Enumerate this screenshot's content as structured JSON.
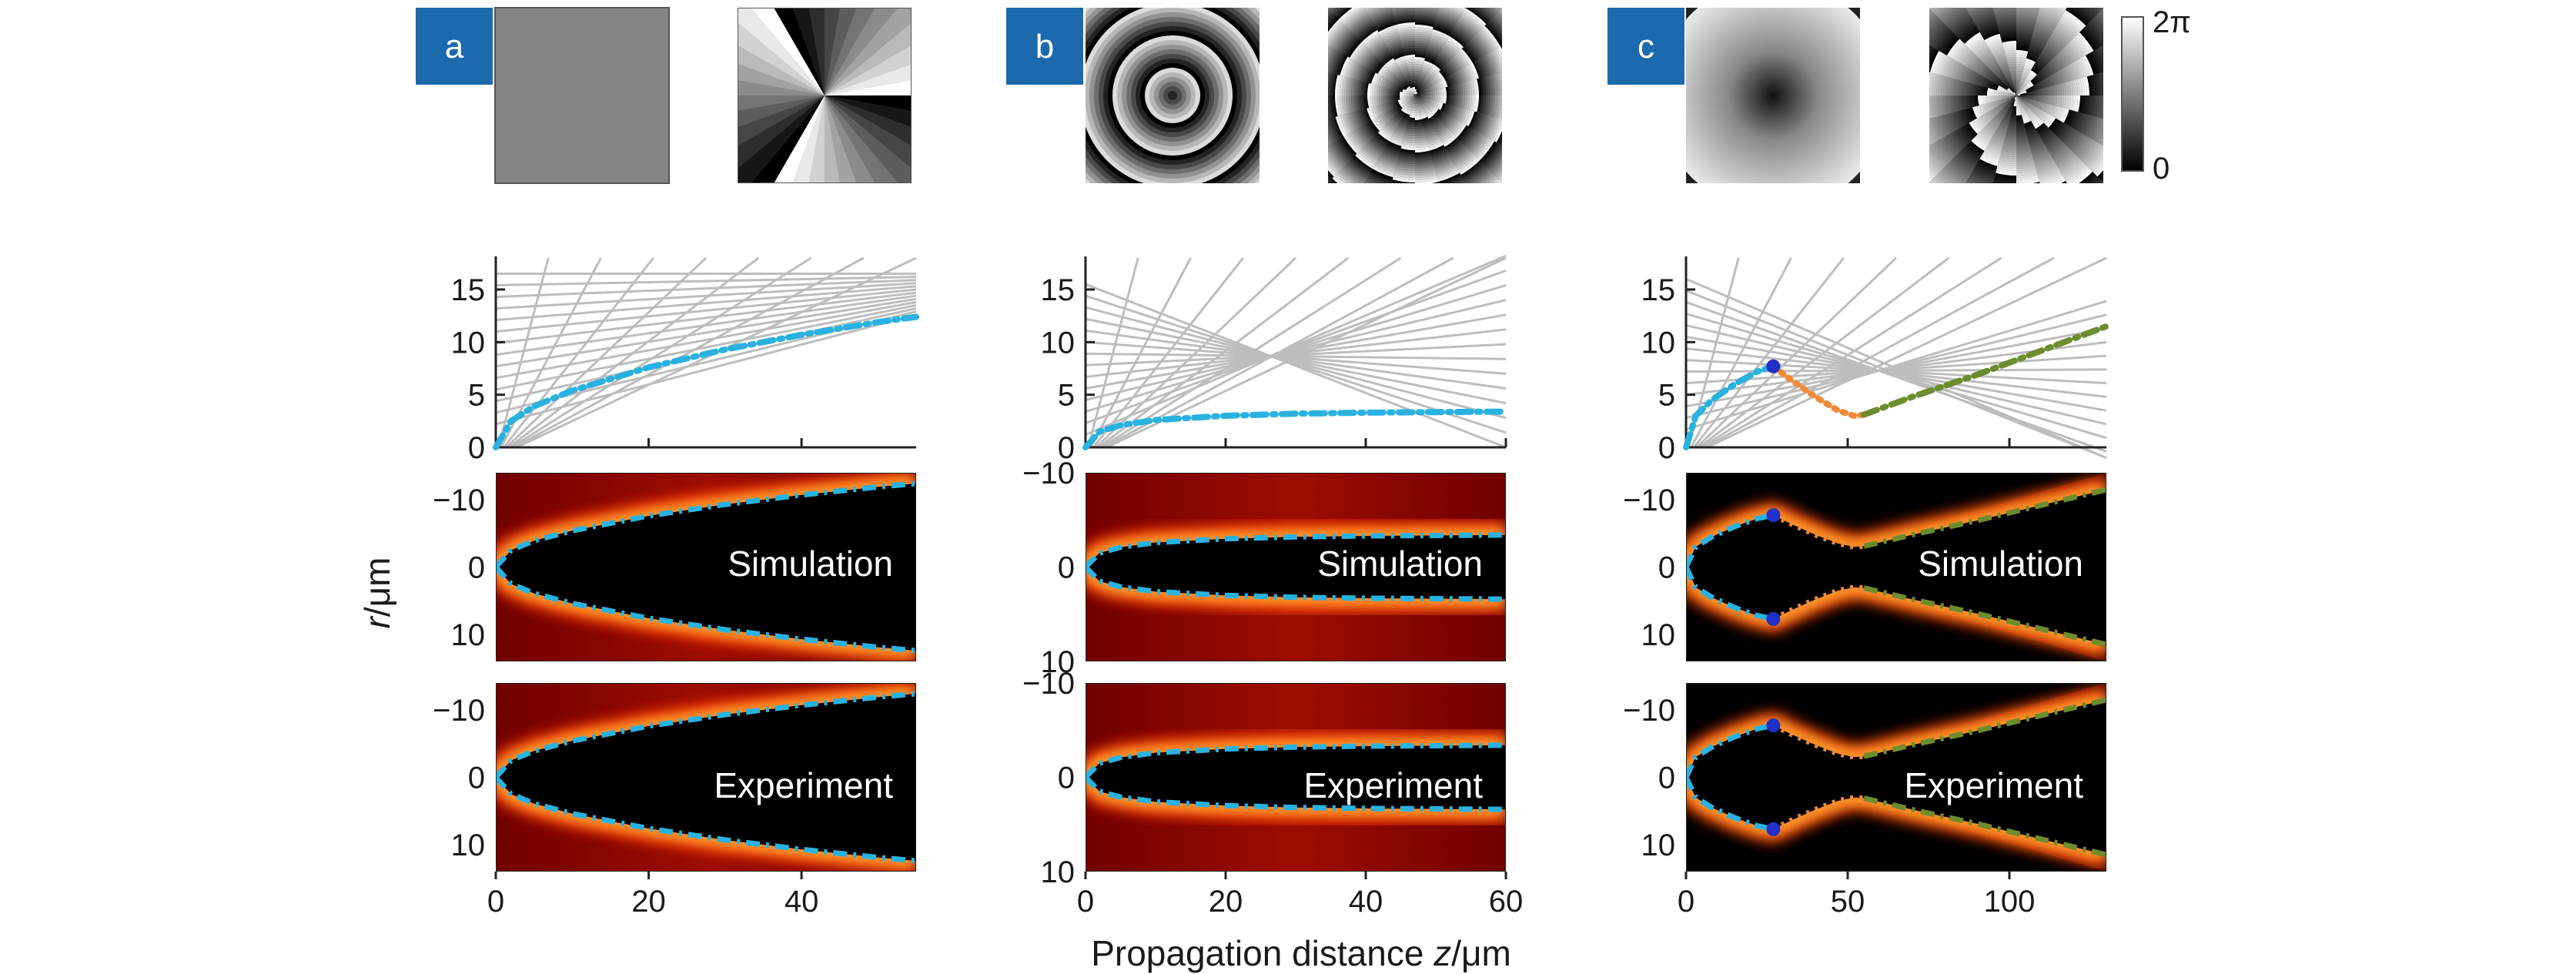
{
  "figure": {
    "panels": [
      {
        "letter": "a"
      },
      {
        "letter": "b"
      },
      {
        "letter": "c"
      }
    ],
    "colorbar": {
      "max_label": "2π",
      "min_label": "0"
    },
    "ylabel_italic": "r",
    "ylabel_rest": "/μm",
    "xlabel_text": "Propagation distance ",
    "xlabel_italic": "z",
    "xlabel_unit": "/μm",
    "row_labels": {
      "simulation": "Simulation",
      "experiment": "Experiment"
    },
    "colors": {
      "panel_tag": "#1c6aad",
      "caustic_blue": "#29b2e0",
      "caustic_orange": "#f08a3a",
      "caustic_green": "#6e8c2e",
      "ray_gray": "#bdbdbd",
      "spot_blue": "#2030c8"
    }
  },
  "chart_data": [
    {
      "type": "line",
      "panel": "a",
      "xlim": [
        0,
        55
      ],
      "ylim": [
        0,
        18
      ],
      "x_ticks": [
        0,
        20,
        40
      ],
      "y_ticks": [
        0,
        5,
        10,
        15
      ],
      "series": [
        {
          "x": [
            0,
            2,
            5,
            10,
            20,
            30,
            40,
            50,
            55
          ],
          "y": [
            0,
            2.5,
            3.9,
            5.4,
            7.6,
            9.3,
            10.7,
            11.9,
            12.4
          ]
        }
      ]
    },
    {
      "type": "line",
      "panel": "b",
      "xlim": [
        0,
        60
      ],
      "ylim": [
        0,
        18
      ],
      "x_ticks": [
        0,
        20,
        40,
        60
      ],
      "y_ticks": [
        0,
        5,
        10,
        15
      ],
      "series": [
        {
          "x": [
            0,
            2,
            5,
            10,
            20,
            30,
            40,
            50,
            60
          ],
          "y": [
            0,
            1.5,
            2.1,
            2.6,
            3.0,
            3.2,
            3.3,
            3.35,
            3.4
          ]
        }
      ]
    },
    {
      "type": "line",
      "panel": "c",
      "xlim": [
        0,
        130
      ],
      "ylim": [
        0,
        18
      ],
      "x_ticks": [
        0,
        50,
        100
      ],
      "y_ticks": [
        0,
        5,
        10,
        15
      ],
      "series": [
        {
          "x": [
            0,
            3,
            8,
            15,
            22,
            27
          ],
          "y": [
            0,
            3.0,
            4.5,
            6.0,
            7.2,
            7.7
          ]
        },
        {
          "x": [
            27,
            33,
            40,
            47,
            52,
            55
          ],
          "y": [
            7.7,
            6.3,
            4.8,
            3.5,
            3.0,
            3.1
          ]
        },
        {
          "x": [
            55,
            70,
            90,
            110,
            130
          ],
          "y": [
            3.1,
            4.8,
            6.9,
            9.2,
            11.5
          ]
        }
      ]
    },
    {
      "type": "heatmap",
      "panel": "a",
      "row": "simulation",
      "xlim": [
        0,
        55
      ],
      "ylim": [
        -14,
        14
      ],
      "y_ticks": [
        -10,
        0,
        10
      ],
      "caustic": {
        "x": [
          0,
          2,
          5,
          10,
          20,
          30,
          40,
          50,
          55
        ],
        "r": [
          0,
          2.5,
          3.9,
          5.4,
          7.6,
          9.3,
          10.7,
          11.9,
          12.4
        ]
      }
    },
    {
      "type": "heatmap",
      "panel": "a",
      "row": "experiment",
      "xlim": [
        0,
        55
      ],
      "ylim": [
        -14,
        14
      ],
      "y_ticks": [
        -10,
        0,
        10
      ],
      "caustic": {
        "x": [
          0,
          2,
          5,
          10,
          20,
          30,
          40,
          50,
          55
        ],
        "r": [
          0,
          2.5,
          3.9,
          5.4,
          7.6,
          9.3,
          10.7,
          11.9,
          12.4
        ]
      }
    },
    {
      "type": "heatmap",
      "panel": "b",
      "row": "simulation",
      "xlim": [
        0,
        60
      ],
      "ylim": [
        -10,
        10
      ],
      "y_ticks": [
        -10,
        0,
        10
      ],
      "caustic": {
        "x": [
          0,
          2,
          5,
          10,
          20,
          30,
          40,
          50,
          60
        ],
        "r": [
          0,
          1.5,
          2.1,
          2.6,
          3.0,
          3.2,
          3.3,
          3.35,
          3.4
        ]
      }
    },
    {
      "type": "heatmap",
      "panel": "b",
      "row": "experiment",
      "xlim": [
        0,
        60
      ],
      "ylim": [
        -10,
        10
      ],
      "y_ticks": [
        -10,
        0,
        10
      ],
      "caustic": {
        "x": [
          0,
          2,
          5,
          10,
          20,
          30,
          40,
          50,
          60
        ],
        "r": [
          0,
          1.5,
          2.1,
          2.6,
          3.0,
          3.2,
          3.3,
          3.35,
          3.4
        ]
      }
    },
    {
      "type": "heatmap",
      "panel": "c",
      "row": "simulation",
      "xlim": [
        0,
        130
      ],
      "ylim": [
        -14,
        14
      ],
      "y_ticks": [
        -10,
        0,
        10
      ],
      "caustic": {
        "x": [
          0,
          3,
          8,
          15,
          22,
          27,
          33,
          40,
          47,
          52,
          55,
          70,
          90,
          110,
          130
        ],
        "r": [
          0,
          3.0,
          4.5,
          6.0,
          7.2,
          7.7,
          6.3,
          4.8,
          3.5,
          3.0,
          3.1,
          4.8,
          6.9,
          9.2,
          11.5
        ]
      }
    },
    {
      "type": "heatmap",
      "panel": "c",
      "row": "experiment",
      "xlim": [
        0,
        130
      ],
      "ylim": [
        -14,
        14
      ],
      "y_ticks": [
        -10,
        0,
        10
      ],
      "caustic": {
        "x": [
          0,
          3,
          8,
          15,
          22,
          27,
          33,
          40,
          47,
          52,
          55,
          70,
          90,
          110,
          130
        ],
        "r": [
          0,
          3.0,
          4.5,
          6.0,
          7.2,
          7.7,
          6.3,
          4.8,
          3.5,
          3.0,
          3.1,
          4.8,
          6.9,
          9.2,
          11.5
        ]
      }
    }
  ]
}
